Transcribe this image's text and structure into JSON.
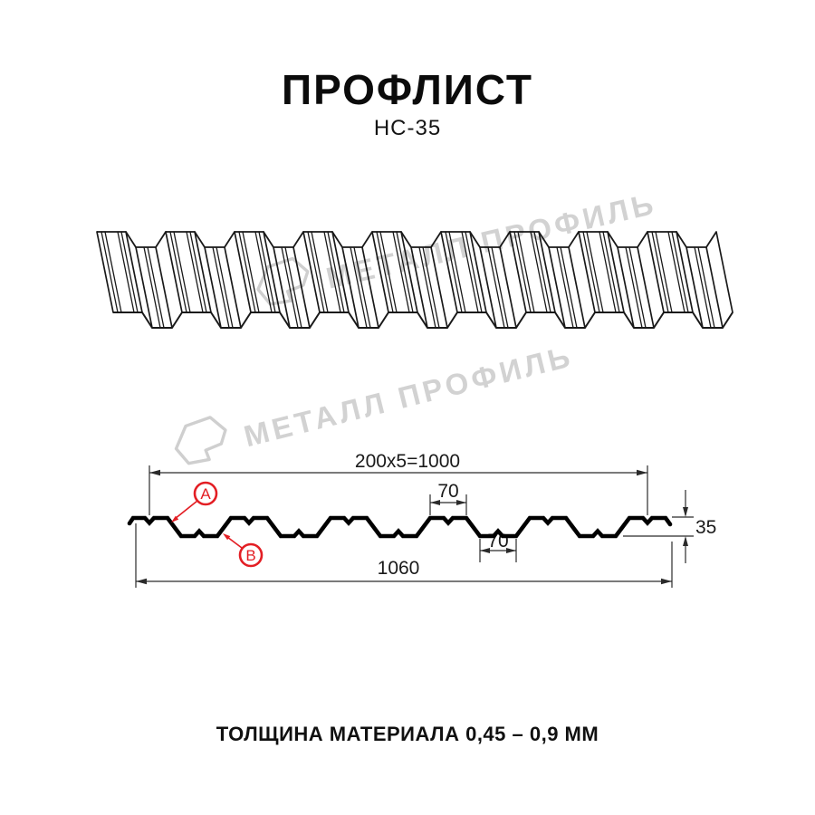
{
  "header": {
    "title": "ПРОФЛИСТ",
    "subtitle": "НС-35"
  },
  "watermark": {
    "text": "МЕТАЛЛ ПРОФИЛЬ",
    "color": "#d2d2d2"
  },
  "diagram": {
    "dims": {
      "top_width": "200x5=1000",
      "overall_width": "1060",
      "crest_width": "70",
      "valley_width": "70",
      "height": "35"
    },
    "callouts": {
      "a": "A",
      "b": "B"
    },
    "accent_color": "#e31e24",
    "line_color": "#000000"
  },
  "footer": {
    "thickness_note": "ТОЛЩИНА МАТЕРИАЛА 0,45 – 0,9 ММ"
  }
}
